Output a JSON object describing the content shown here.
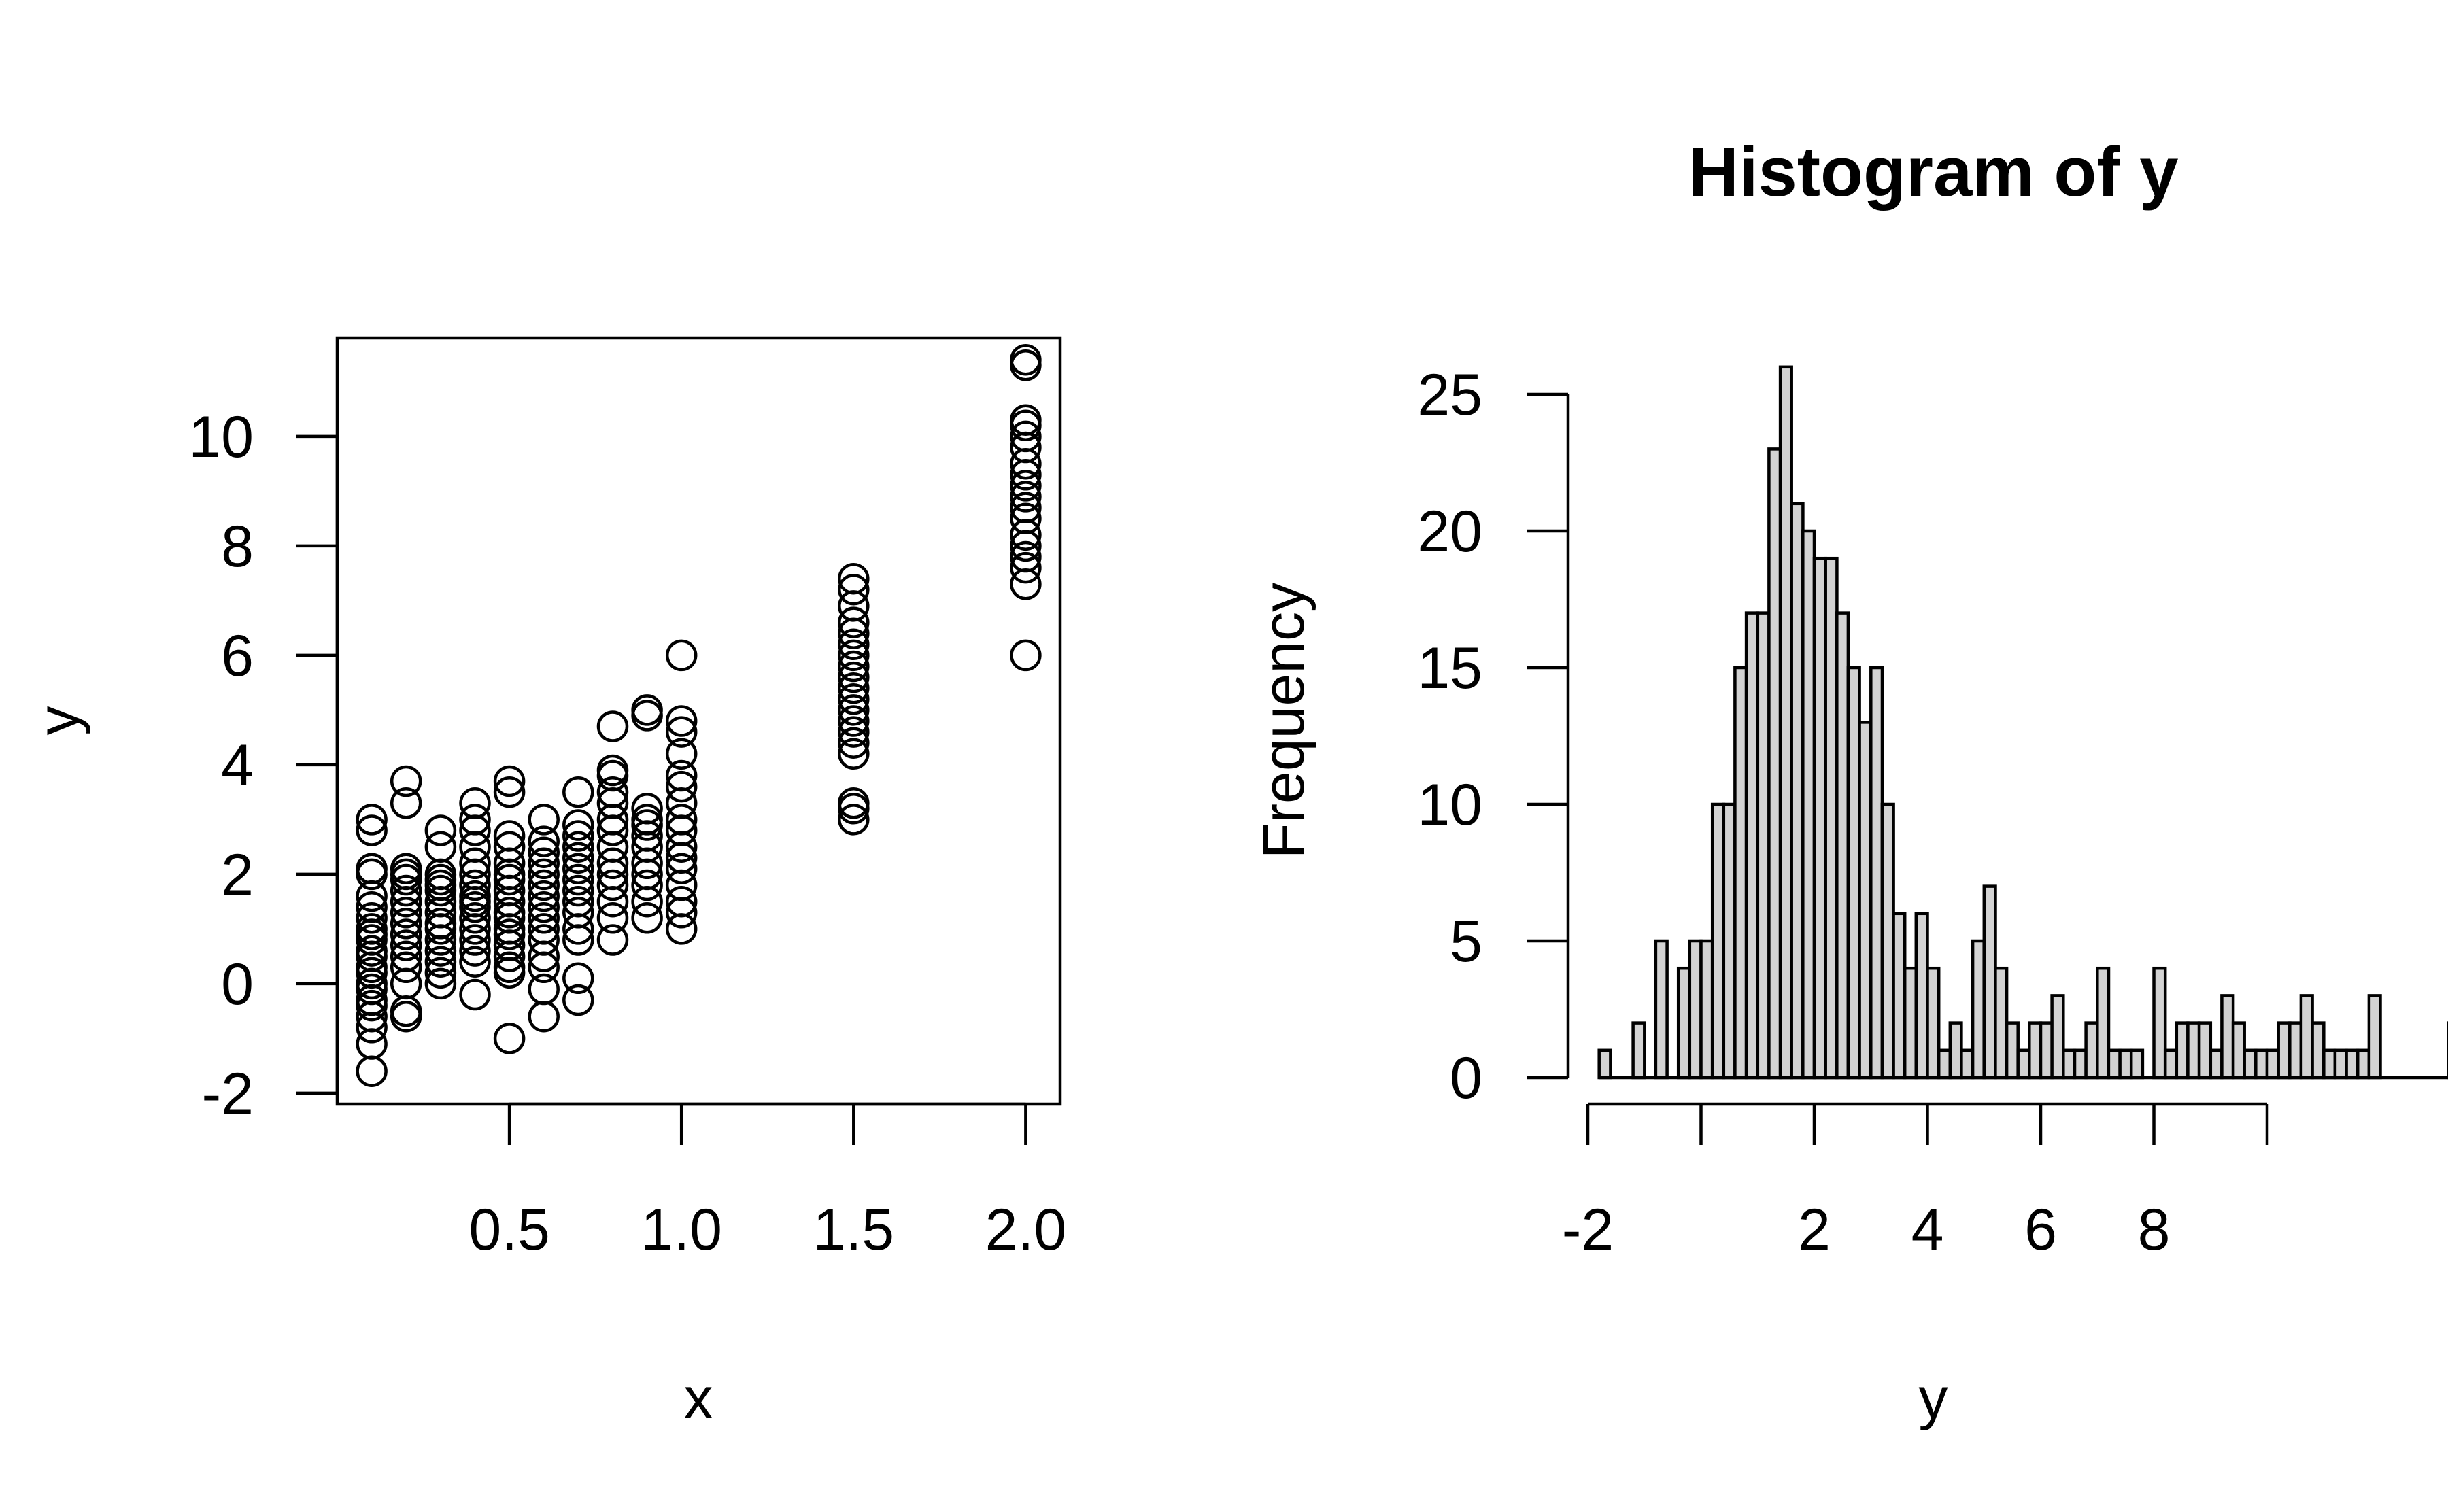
{
  "chart_data": [
    {
      "type": "scatter",
      "title": "",
      "xlabel": "x",
      "ylabel": "y",
      "xlim": [
        0.0,
        2.1
      ],
      "ylim": [
        -2.2,
        11.8
      ],
      "x_ticks": [
        "0.5",
        "1.0",
        "1.5",
        "2.0"
      ],
      "y_ticks": [
        "-2",
        "0",
        "2",
        "4",
        "6",
        "8",
        "10"
      ],
      "grid": false,
      "point_style": "open-circle",
      "groups": [
        {
          "x": 0.1,
          "y": [
            -1.6,
            -1.1,
            -0.8,
            -0.6,
            -0.4,
            -0.3,
            -0.1,
            0.0,
            0.2,
            0.3,
            0.5,
            0.6,
            0.8,
            0.9,
            1.0,
            1.2,
            1.4,
            1.6,
            2.0,
            2.1,
            2.8,
            3.0
          ]
        },
        {
          "x": 0.2,
          "y": [
            -0.6,
            -0.5,
            0.0,
            0.3,
            0.5,
            0.7,
            0.9,
            1.1,
            1.3,
            1.5,
            1.7,
            1.9,
            2.0,
            2.1,
            3.3,
            3.7
          ]
        },
        {
          "x": 0.3,
          "y": [
            0.0,
            0.2,
            0.4,
            0.6,
            0.8,
            1.0,
            1.1,
            1.3,
            1.5,
            1.7,
            1.8,
            1.9,
            2.0,
            2.5,
            2.8
          ]
        },
        {
          "x": 0.4,
          "y": [
            -0.2,
            0.4,
            0.6,
            0.8,
            1.0,
            1.2,
            1.4,
            1.5,
            1.6,
            1.8,
            2.0,
            2.2,
            2.5,
            2.8,
            3.0,
            3.3
          ]
        },
        {
          "x": 0.5,
          "y": [
            -1.0,
            0.2,
            0.3,
            0.5,
            0.7,
            0.9,
            1.0,
            1.2,
            1.3,
            1.5,
            1.7,
            1.9,
            2.0,
            2.2,
            2.5,
            2.7,
            3.5,
            3.7
          ]
        },
        {
          "x": 0.6,
          "y": [
            -0.6,
            -0.1,
            0.3,
            0.5,
            0.8,
            1.0,
            1.2,
            1.4,
            1.6,
            1.8,
            2.0,
            2.2,
            2.4,
            2.6,
            3.0
          ]
        },
        {
          "x": 0.7,
          "y": [
            -0.3,
            0.1,
            0.8,
            1.0,
            1.3,
            1.5,
            1.7,
            1.9,
            2.1,
            2.3,
            2.5,
            2.7,
            2.9,
            3.5
          ]
        },
        {
          "x": 0.8,
          "y": [
            0.8,
            1.2,
            1.5,
            1.8,
            2.0,
            2.2,
            2.5,
            2.8,
            3.0,
            3.3,
            3.5,
            3.8,
            3.9,
            4.7
          ]
        },
        {
          "x": 0.9,
          "y": [
            1.2,
            1.5,
            1.8,
            2.0,
            2.2,
            2.5,
            2.7,
            2.9,
            3.0,
            3.2,
            4.9,
            5.0
          ]
        },
        {
          "x": 1.0,
          "y": [
            1.0,
            1.3,
            1.5,
            1.8,
            2.1,
            2.3,
            2.5,
            2.8,
            3.0,
            3.3,
            3.6,
            3.8,
            4.2,
            4.6,
            4.8,
            6.0
          ]
        },
        {
          "x": 1.5,
          "y": [
            3.0,
            3.2,
            3.3,
            4.2,
            4.4,
            4.6,
            4.8,
            5.0,
            5.2,
            5.4,
            5.6,
            5.8,
            6.0,
            6.2,
            6.4,
            6.6,
            6.9,
            7.2,
            7.4
          ]
        },
        {
          "x": 2.0,
          "y": [
            6.0,
            7.3,
            7.6,
            7.8,
            8.0,
            8.2,
            8.5,
            8.7,
            8.9,
            9.1,
            9.3,
            9.5,
            9.8,
            10.0,
            10.2,
            10.3,
            11.3,
            11.4
          ]
        }
      ]
    },
    {
      "type": "bar",
      "subtype": "histogram",
      "title": "Histogram of y",
      "xlabel": "y",
      "ylabel": "Frequency",
      "xlim": [
        -2.0,
        11.5
      ],
      "ylim": [
        0,
        26
      ],
      "x_ticks": [
        "-2",
        "2",
        "4",
        "6",
        "8"
      ],
      "y_ticks": [
        "0",
        "5",
        "10",
        "15",
        "20",
        "25"
      ],
      "grid": false,
      "bin_start": -1.8,
      "bin_width": 0.2,
      "counts": [
        1,
        0,
        0,
        2,
        0,
        5,
        0,
        4,
        5,
        5,
        10,
        10,
        15,
        17,
        17,
        23,
        26,
        21,
        20,
        19,
        19,
        17,
        15,
        13,
        15,
        10,
        6,
        4,
        6,
        4,
        1,
        2,
        1,
        5,
        7,
        4,
        2,
        1,
        2,
        2,
        3,
        1,
        1,
        2,
        4,
        1,
        1,
        1,
        0,
        4,
        1,
        2,
        2,
        2,
        1,
        3,
        2,
        1,
        1,
        1,
        2,
        2,
        3,
        2,
        1,
        1,
        1,
        1,
        3,
        0,
        0,
        0,
        0,
        0,
        0,
        2
      ]
    }
  ]
}
